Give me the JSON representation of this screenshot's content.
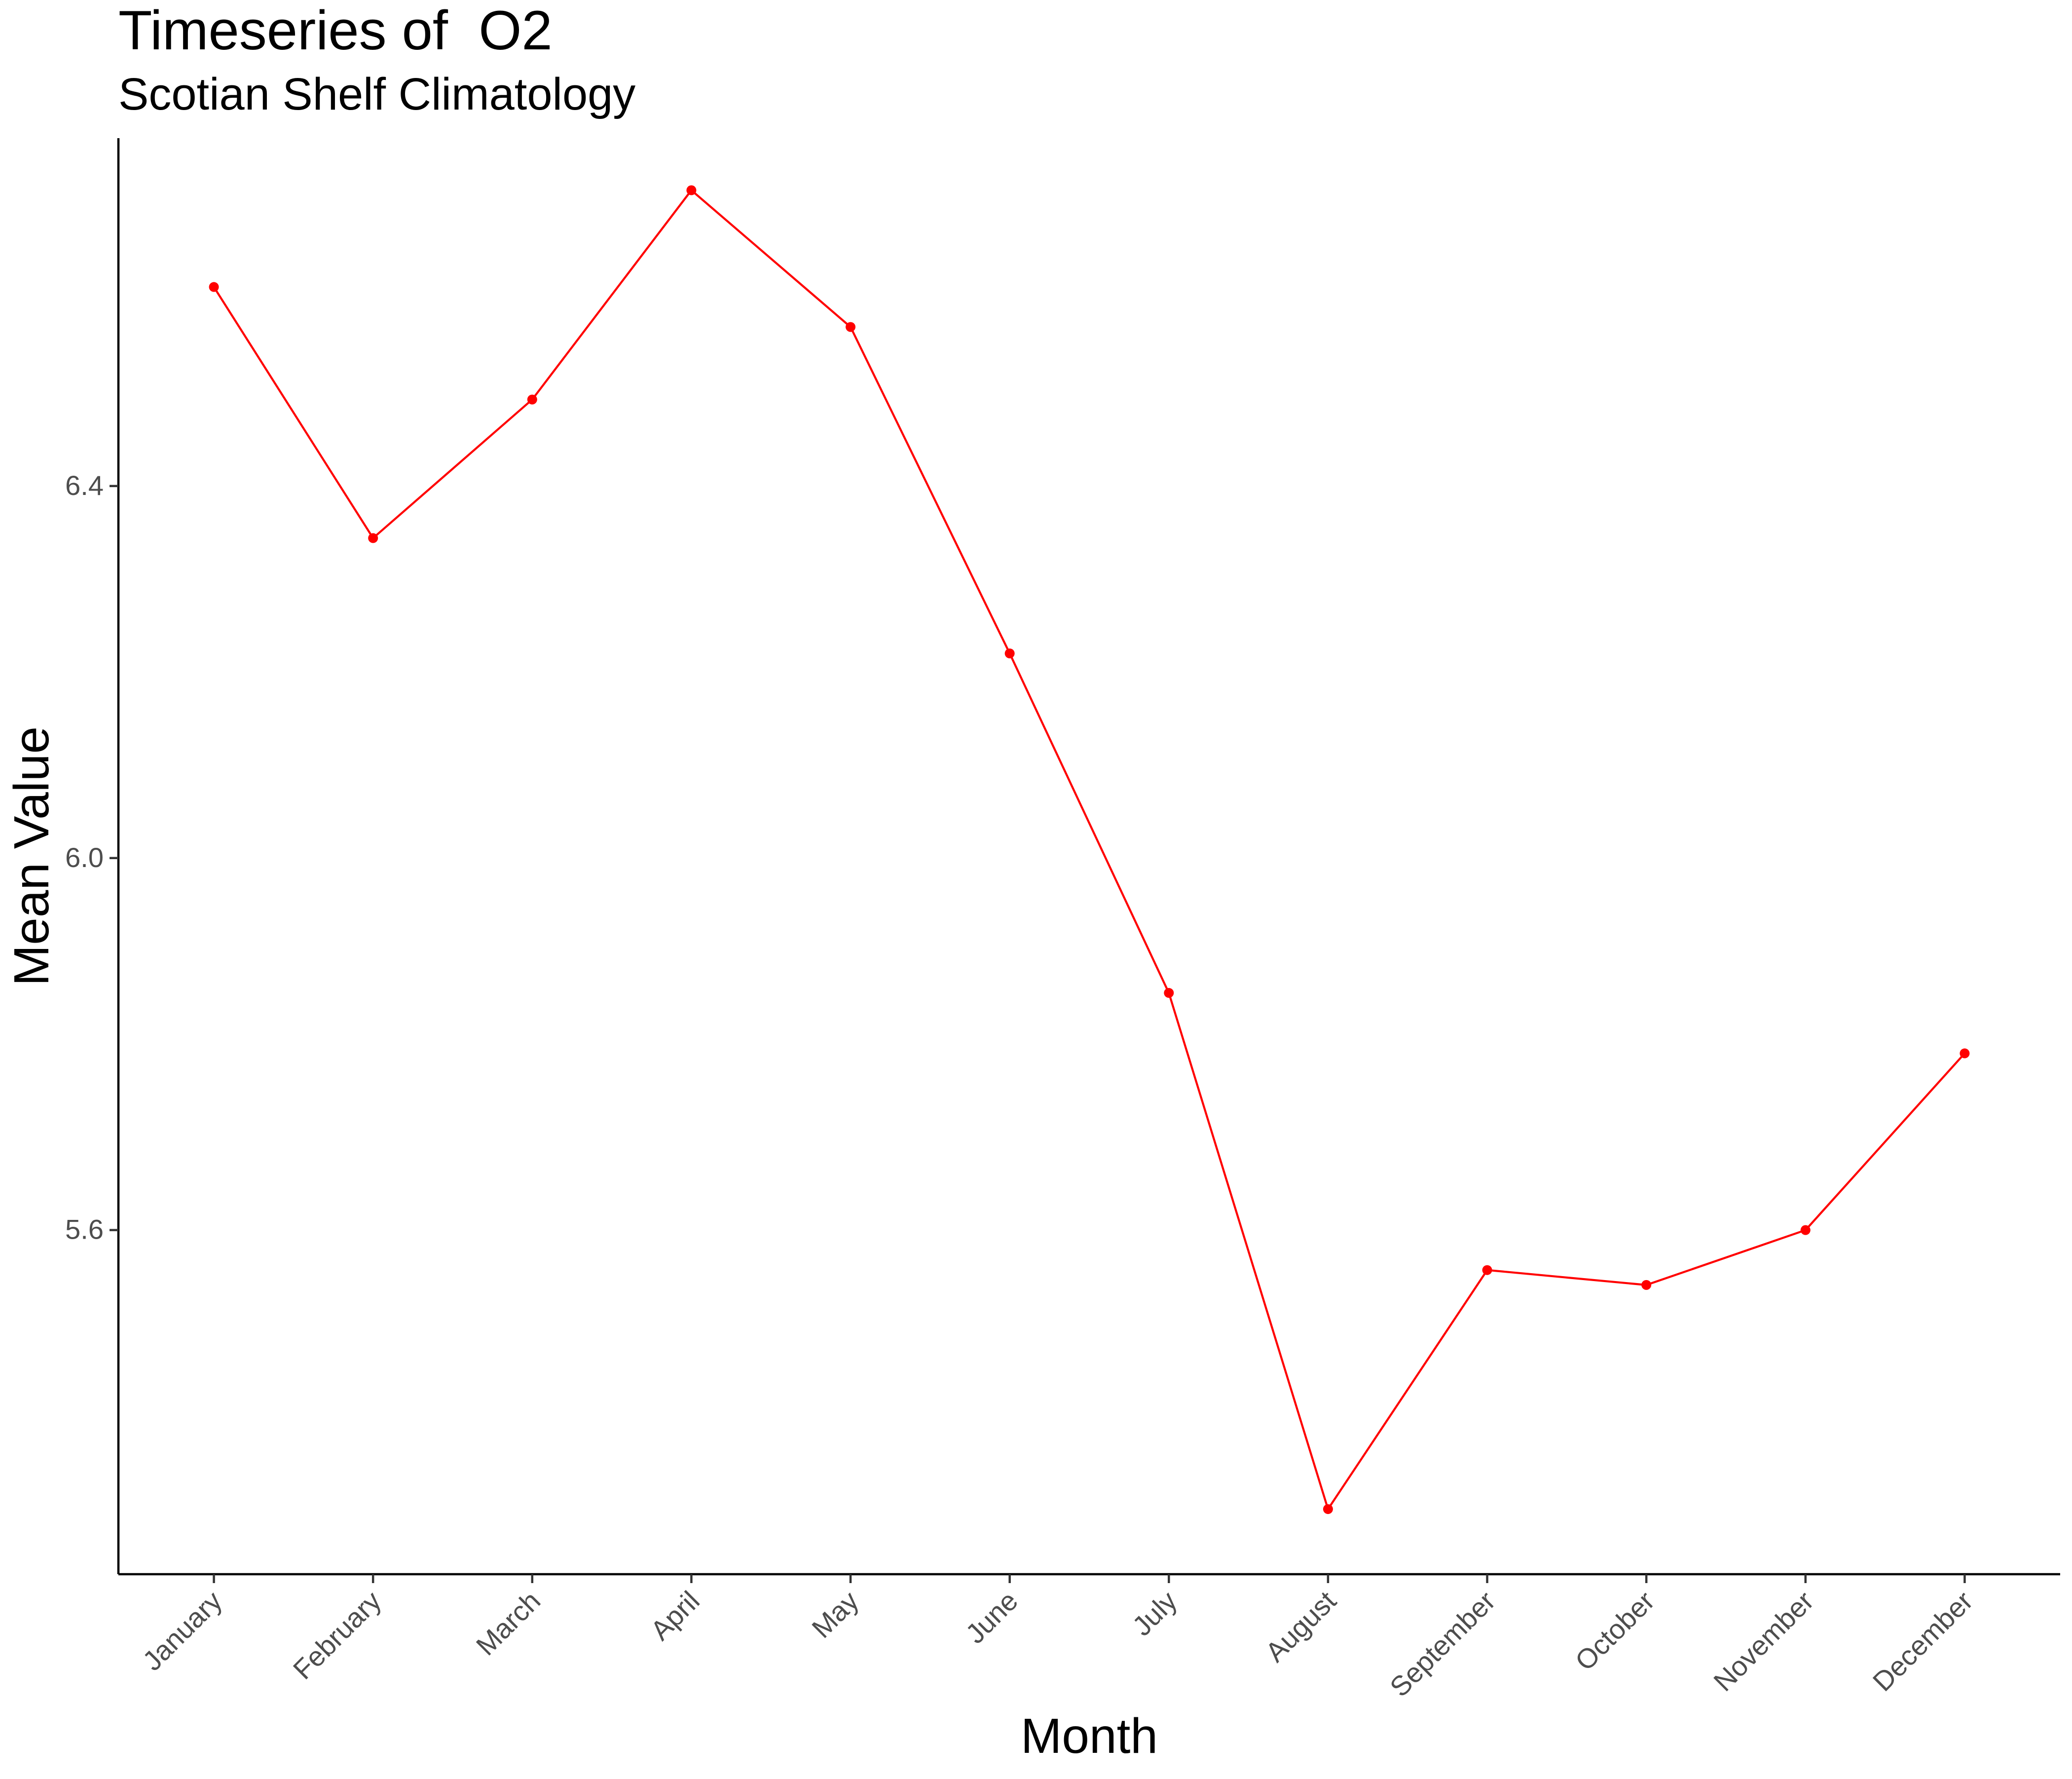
{
  "chart_data": {
    "type": "line",
    "title": "Timeseries of  O2",
    "subtitle": "Scotian Shelf Climatology",
    "xlabel": "Month",
    "ylabel": "Mean Value",
    "categories": [
      "January",
      "February",
      "March",
      "April",
      "May",
      "June",
      "July",
      "August",
      "September",
      "October",
      "November",
      "December"
    ],
    "series": [
      {
        "values": [
          6.614,
          6.344,
          6.493,
          6.718,
          6.571,
          6.22,
          5.855,
          5.3,
          5.557,
          5.541,
          5.6,
          5.79
        ],
        "color": "#ff0000"
      }
    ],
    "yticks": [
      5.6,
      6.0,
      6.4
    ],
    "ytick_labels": [
      "5.6",
      "6.0",
      "6.4"
    ],
    "ylim": [
      5.23,
      6.774
    ],
    "grid": false,
    "legend": "none"
  }
}
